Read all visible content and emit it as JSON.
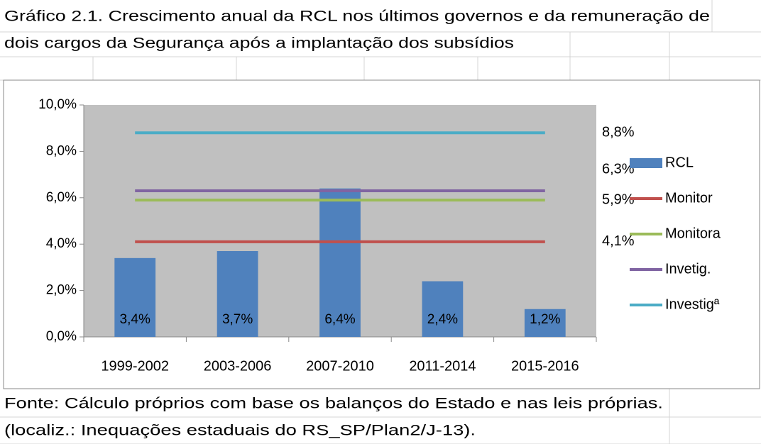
{
  "header": {
    "lines": [
      "Gráfico 2.1. Crescimento anual da RCL nos últimos governos e da remuneração de",
      "dois cargos da Segurança após a implantação dos subsídios"
    ]
  },
  "footer": {
    "lines": [
      "Fonte: Cálculo próprios com base os balanços do Estado e nas leis próprias.",
      "(localiz.: Inequações estaduais do RS_SP/Plan2/J-13)."
    ]
  },
  "chart_data": {
    "type": "bar",
    "categories": [
      "1999-2002",
      "2003-2006",
      "2007-2010",
      "2011-2014",
      "2015-2016"
    ],
    "ylim": [
      0,
      10
    ],
    "yticks": [
      {
        "value": 0,
        "label": "0,0%"
      },
      {
        "value": 2,
        "label": "2,0%"
      },
      {
        "value": 4,
        "label": "4,0%"
      },
      {
        "value": 6,
        "label": "6,0%"
      },
      {
        "value": 8,
        "label": "8,0%"
      },
      {
        "value": 10,
        "label": "10,0%"
      }
    ],
    "legend": "right",
    "series": [
      {
        "name": "RCL",
        "type": "bar",
        "color": "#4f81bd",
        "values": [
          3.4,
          3.7,
          6.4,
          2.4,
          1.2
        ],
        "value_labels": [
          "3,4%",
          "3,7%",
          "6,4%",
          "2,4%",
          "1,2%"
        ]
      },
      {
        "name": "Monitor",
        "type": "line",
        "color": "#c0504d",
        "values": [
          4.1,
          4.1,
          4.1,
          4.1,
          4.1
        ],
        "value_labels": [
          null,
          null,
          null,
          null,
          "4,1%"
        ]
      },
      {
        "name": "Monitora",
        "type": "line",
        "color": "#9bbb59",
        "values": [
          5.9,
          5.9,
          5.9,
          5.9,
          5.9
        ],
        "value_labels": [
          null,
          null,
          null,
          null,
          "5,9%"
        ]
      },
      {
        "name": "Invetig.",
        "type": "line",
        "color": "#8064a2",
        "values": [
          6.3,
          6.3,
          6.3,
          6.3,
          6.3
        ],
        "value_labels": [
          null,
          null,
          null,
          null,
          "6,3%"
        ]
      },
      {
        "name": "Investigª",
        "type": "line",
        "color": "#4bacc6",
        "values": [
          8.8,
          8.8,
          8.8,
          8.8,
          8.8
        ],
        "value_labels": [
          null,
          null,
          null,
          null,
          "8,8%"
        ]
      }
    ]
  }
}
